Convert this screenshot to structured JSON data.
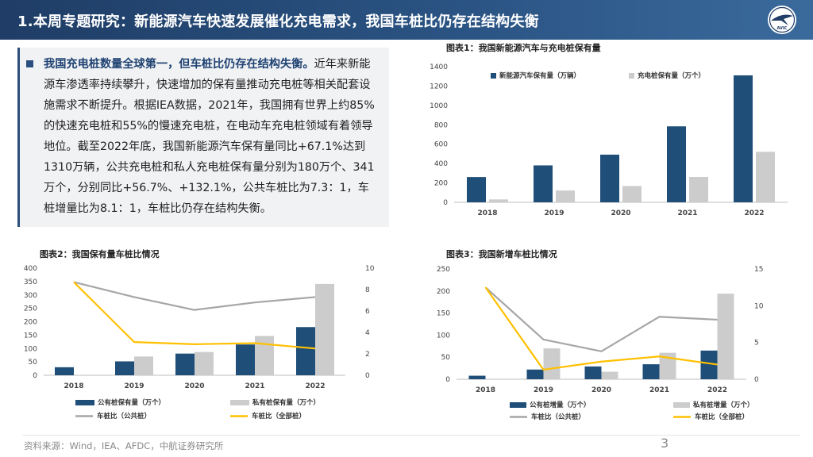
{
  "header": {
    "title": "1.本周专题研究：新能源汽车快速发展催化充电需求，我国车桩比仍存在结构失衡"
  },
  "logo": {
    "text": "AVIC"
  },
  "text_box": {
    "highlight": "我国充电桩数量全球第一，但车桩比仍存在结构失衡。",
    "body": "近年来新能源车渗透率持续攀升，快速增加的保有量推动充电桩等相关配套设施需求不断提升。根据IEA数据，2021年，我国拥有世界上约85%的快速充电桩和55%的慢速充电桩，在电动车充电桩领域有着领导地位。截至2022年底，我国新能源汽车保有量同比+67.1%达到1310万辆，公共充电桩和私人充电桩保有量分别为180万个、341万个，分别同比+56.7%、+132.1%，公共车桩比为7.3：1，车桩增量比为8.1：1，车桩比仍存在结构失衡。"
  },
  "chart_data": [
    {
      "id": "chart1",
      "type": "bar",
      "title": "图表1：我国新能源汽车与充电桩保有量",
      "categories": [
        "2018",
        "2019",
        "2020",
        "2021",
        "2022"
      ],
      "ylim": [
        0,
        1400
      ],
      "yticks": [
        0,
        200,
        400,
        600,
        800,
        1000,
        1200,
        1400
      ],
      "series": [
        {
          "name": "新能源汽车保有量（万辆）",
          "color": "#1f4e79",
          "values": [
            261,
            381,
            492,
            784,
            1310
          ]
        },
        {
          "name": "充电桩保有量（万个）",
          "color": "#cccccc",
          "values": [
            30,
            122,
            168,
            262,
            521
          ]
        }
      ]
    },
    {
      "id": "chart2",
      "type": "bar",
      "title": "图表2：我国保有量车桩比情况",
      "categories": [
        "2018",
        "2019",
        "2020",
        "2021",
        "2022"
      ],
      "ylim": [
        0,
        400
      ],
      "yticks": [
        0,
        50,
        100,
        150,
        200,
        250,
        300,
        350,
        400
      ],
      "y2lim": [
        0,
        10
      ],
      "y2ticks": [
        0,
        2,
        4,
        6,
        8,
        10
      ],
      "series": [
        {
          "name": "公有桩保有量（万个）",
          "kind": "bar",
          "color": "#1f4e79",
          "values": [
            30,
            52,
            81,
            115,
            180
          ]
        },
        {
          "name": "私有桩保有量（万个）",
          "kind": "bar",
          "color": "#cccccc",
          "values": [
            0,
            70,
            87,
            147,
            341
          ]
        },
        {
          "name": "车桩比（公共桩）",
          "kind": "line",
          "axis": "right",
          "color": "#a6a6a6",
          "values": [
            8.7,
            7.3,
            6.1,
            6.8,
            7.3
          ]
        },
        {
          "name": "车桩比（全部桩）",
          "kind": "line",
          "axis": "right",
          "color": "#ffc000",
          "values": [
            8.7,
            3.1,
            2.9,
            3.0,
            2.5
          ]
        }
      ]
    },
    {
      "id": "chart3",
      "type": "bar",
      "title": "图表3：我国新增车桩比情况",
      "categories": [
        "2018",
        "2019",
        "2020",
        "2021",
        "2022"
      ],
      "ylim": [
        0,
        250
      ],
      "yticks": [
        0,
        50,
        100,
        150,
        200,
        250
      ],
      "y2lim": [
        0,
        15
      ],
      "y2ticks": [
        0,
        5,
        10,
        15
      ],
      "series": [
        {
          "name": "公有桩增量（万个）",
          "kind": "bar",
          "color": "#1f4e79",
          "values": [
            8,
            22,
            29,
            34,
            65
          ]
        },
        {
          "name": "私有桩增量（万个）",
          "kind": "bar",
          "color": "#cccccc",
          "values": [
            0,
            70,
            17,
            60,
            194
          ]
        },
        {
          "name": "车桩比（公共桩）",
          "kind": "line",
          "axis": "right",
          "color": "#a6a6a6",
          "values": [
            12.5,
            5.4,
            3.8,
            8.5,
            8.1
          ]
        },
        {
          "name": "车桩比（全部桩）",
          "kind": "line",
          "axis": "right",
          "color": "#ffc000",
          "values": [
            12.5,
            1.3,
            2.4,
            3.1,
            2.0
          ]
        }
      ]
    }
  ],
  "footer": {
    "source": "资料来源：Wind，IEA、AFDC，中航证券研究所",
    "page": "3"
  }
}
